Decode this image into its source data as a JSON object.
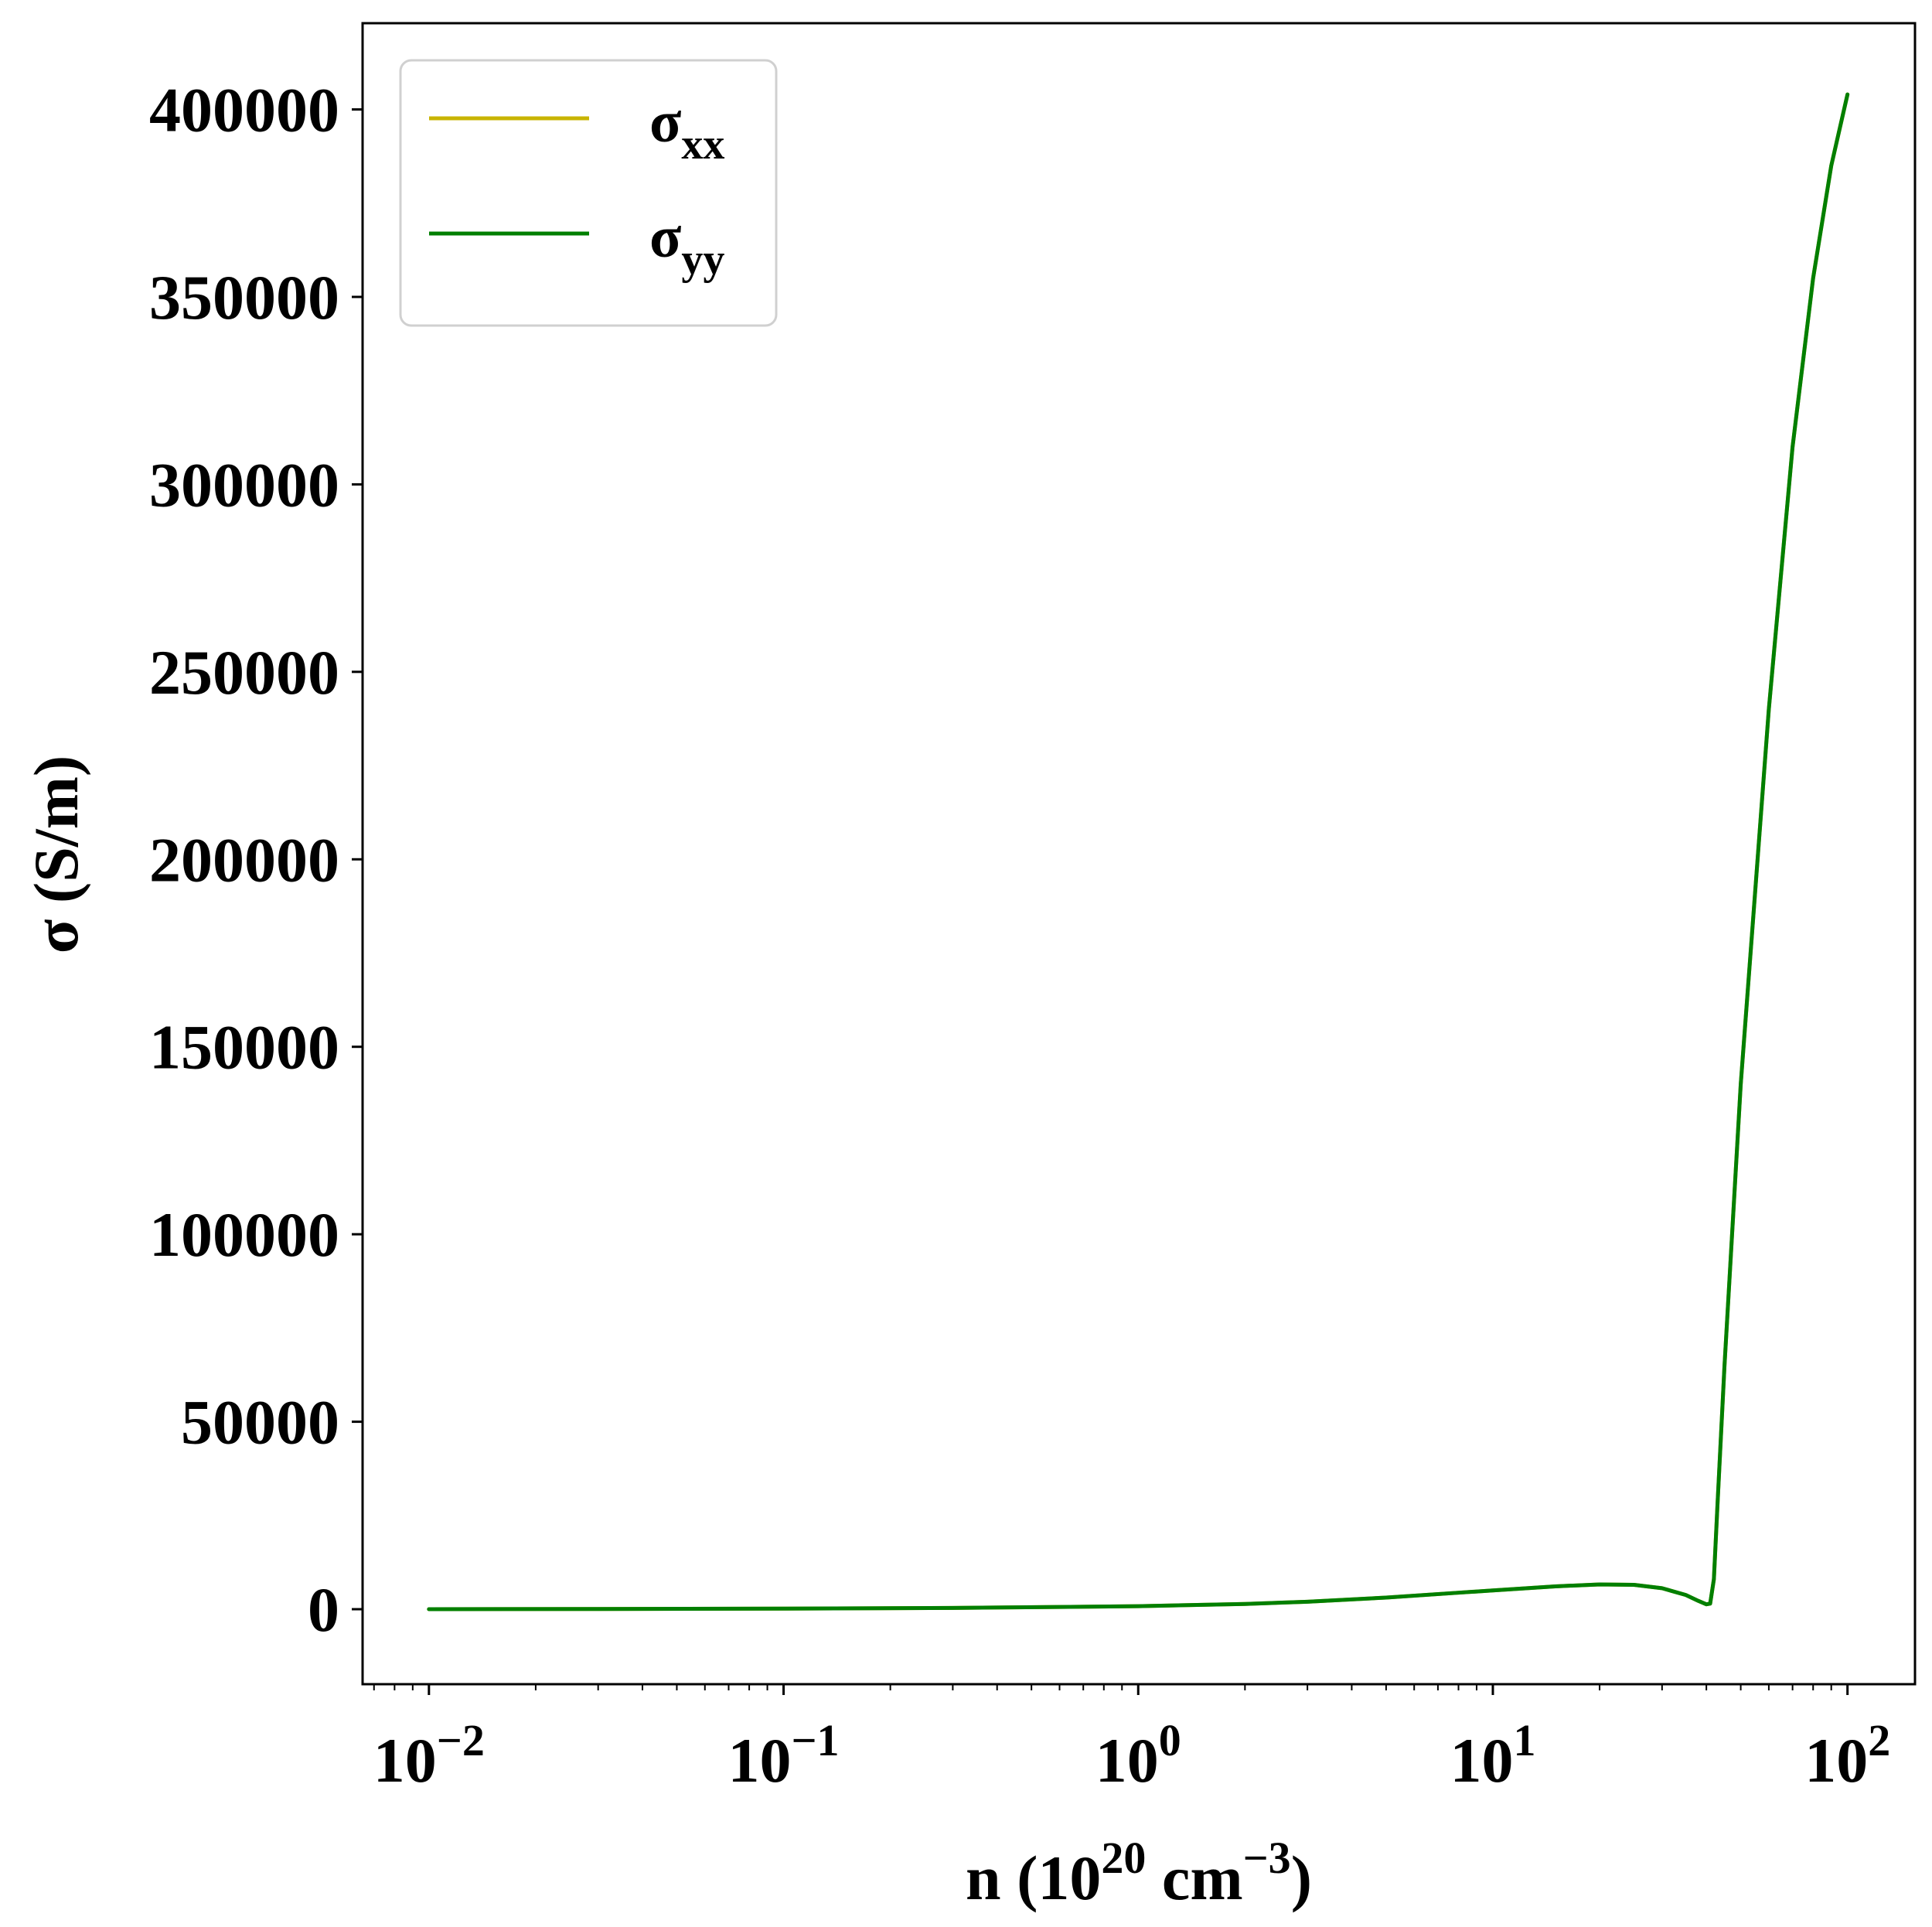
{
  "chart_data": {
    "type": "line",
    "xscale": "log",
    "xlim": [
      0.0065,
      155
    ],
    "ylim": [
      -20000,
      423000
    ],
    "grid": false,
    "legend_position": "top-left",
    "xlabel": {
      "prefix": "n (10",
      "sup1": "20",
      "mid": " cm",
      "sup2": "−3",
      "suffix": ")"
    },
    "ylabel": "σ (S/m)",
    "xticks": [
      {
        "value": 0.01,
        "base": "10",
        "exp": "−2"
      },
      {
        "value": 0.1,
        "base": "10",
        "exp": "−1"
      },
      {
        "value": 1,
        "base": "10",
        "exp": "0"
      },
      {
        "value": 10,
        "base": "10",
        "exp": "1"
      },
      {
        "value": 100,
        "base": "10",
        "exp": "2"
      }
    ],
    "yticks": [
      0,
      50000,
      100000,
      150000,
      200000,
      250000,
      300000,
      350000,
      400000
    ],
    "ytick_labels": [
      "0",
      "50000",
      "100000",
      "150000",
      "200000",
      "250000",
      "300000",
      "350000",
      "400000"
    ],
    "series": [
      {
        "name_main": "σ",
        "name_sub": "xx",
        "color": "#c8b400",
        "x": [
          0.01,
          0.03,
          0.1,
          0.3,
          1,
          2,
          3,
          5,
          8,
          10,
          15,
          20,
          25,
          30,
          35,
          38,
          40,
          41,
          42,
          43,
          45,
          50,
          60,
          70,
          80,
          90,
          100
        ],
        "y": [
          0,
          50,
          150,
          350,
          800,
          1400,
          2000,
          3100,
          4400,
          5000,
          6100,
          6600,
          6500,
          5600,
          3800,
          2200,
          1300,
          1500,
          8000,
          28000,
          65000,
          140000,
          240000,
          310000,
          355000,
          385000,
          404000
        ]
      },
      {
        "name_main": "σ",
        "name_sub": "yy",
        "color": "#007f00",
        "x": [
          0.01,
          0.03,
          0.1,
          0.3,
          1,
          2,
          3,
          5,
          8,
          10,
          15,
          20,
          25,
          30,
          35,
          38,
          40,
          41,
          42,
          43,
          45,
          50,
          60,
          70,
          80,
          90,
          100
        ],
        "y": [
          0,
          50,
          150,
          350,
          800,
          1400,
          2000,
          3100,
          4400,
          5000,
          6100,
          6600,
          6500,
          5600,
          3800,
          2200,
          1300,
          1500,
          8000,
          28000,
          65000,
          140000,
          240000,
          310000,
          355000,
          385000,
          404000
        ]
      }
    ]
  }
}
